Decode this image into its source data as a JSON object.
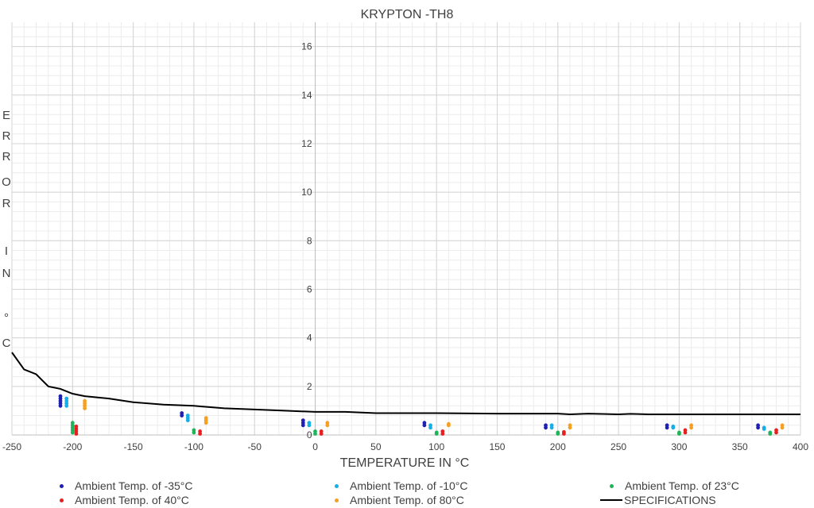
{
  "chart_data": {
    "type": "scatter",
    "title": "KRYPTON -TH8",
    "xlabel": "TEMPERATURE IN °C",
    "ylabel": "ERROR IN °C",
    "ylabel_letters": [
      "E",
      "R",
      "R",
      "O",
      "R",
      "",
      "I",
      "N",
      "",
      "°",
      "C"
    ],
    "xlim": [
      -250,
      400
    ],
    "ylim": [
      0,
      17
    ],
    "x_ticks": [
      -250,
      -200,
      -150,
      -100,
      -50,
      0,
      50,
      100,
      150,
      200,
      250,
      300,
      350,
      400
    ],
    "y_ticks": [
      0,
      2,
      4,
      6,
      8,
      10,
      12,
      14,
      16
    ],
    "grid": true,
    "legend_position": "bottom",
    "series": [
      {
        "name": "Ambient Temp. of -35°C",
        "color": "#1f1fb4",
        "points": [
          [
            -210,
            1.2
          ],
          [
            -210,
            1.3
          ],
          [
            -210,
            1.4
          ],
          [
            -210,
            1.5
          ],
          [
            -210,
            1.6
          ],
          [
            -110,
            0.8
          ],
          [
            -110,
            0.9
          ],
          [
            -10,
            0.4
          ],
          [
            -10,
            0.5
          ],
          [
            -10,
            0.6
          ],
          [
            90,
            0.4
          ],
          [
            90,
            0.5
          ],
          [
            190,
            0.3
          ],
          [
            190,
            0.4
          ],
          [
            290,
            0.3
          ],
          [
            290,
            0.4
          ],
          [
            365,
            0.3
          ],
          [
            365,
            0.4
          ]
        ]
      },
      {
        "name": "Ambient Temp. of -10°C",
        "color": "#17aee8",
        "points": [
          [
            -205,
            1.2
          ],
          [
            -205,
            1.3
          ],
          [
            -205,
            1.4
          ],
          [
            -205,
            1.5
          ],
          [
            -105,
            0.6
          ],
          [
            -105,
            0.7
          ],
          [
            -105,
            0.8
          ],
          [
            -5,
            0.4
          ],
          [
            -5,
            0.5
          ],
          [
            95,
            0.3
          ],
          [
            95,
            0.4
          ],
          [
            195,
            0.3
          ],
          [
            195,
            0.4
          ],
          [
            295,
            0.3
          ],
          [
            295,
            0.35
          ],
          [
            370,
            0.25
          ],
          [
            370,
            0.3
          ]
        ]
      },
      {
        "name": "Ambient Temp. of 23°C",
        "color": "#1fb45a",
        "points": [
          [
            -200,
            0.1
          ],
          [
            -200,
            0.2
          ],
          [
            -200,
            0.3
          ],
          [
            -200,
            0.4
          ],
          [
            -200,
            0.5
          ],
          [
            -100,
            0.1
          ],
          [
            -100,
            0.2
          ],
          [
            0,
            0.05
          ],
          [
            0,
            0.15
          ],
          [
            100,
            0.05
          ],
          [
            100,
            0.1
          ],
          [
            200,
            0.05
          ],
          [
            200,
            0.1
          ],
          [
            300,
            0.05
          ],
          [
            300,
            0.1
          ],
          [
            375,
            0.05
          ],
          [
            375,
            0.1
          ]
        ]
      },
      {
        "name": "Ambient Temp. of 40°C",
        "color": "#e81f1f",
        "points": [
          [
            -197,
            0.05
          ],
          [
            -197,
            0.15
          ],
          [
            -197,
            0.25
          ],
          [
            -197,
            0.35
          ],
          [
            -95,
            0.05
          ],
          [
            -95,
            0.15
          ],
          [
            5,
            0.05
          ],
          [
            5,
            0.15
          ],
          [
            105,
            0.05
          ],
          [
            105,
            0.15
          ],
          [
            205,
            0.05
          ],
          [
            205,
            0.12
          ],
          [
            305,
            0.1
          ],
          [
            305,
            0.2
          ],
          [
            380,
            0.1
          ],
          [
            380,
            0.2
          ]
        ]
      },
      {
        "name": "Ambient Temp. of 80°C",
        "color": "#f5a020",
        "points": [
          [
            -190,
            1.1
          ],
          [
            -190,
            1.2
          ],
          [
            -190,
            1.3
          ],
          [
            -190,
            1.4
          ],
          [
            -90,
            0.5
          ],
          [
            -90,
            0.6
          ],
          [
            -90,
            0.7
          ],
          [
            10,
            0.4
          ],
          [
            10,
            0.5
          ],
          [
            110,
            0.4
          ],
          [
            110,
            0.45
          ],
          [
            210,
            0.3
          ],
          [
            210,
            0.4
          ],
          [
            310,
            0.3
          ],
          [
            310,
            0.4
          ],
          [
            385,
            0.3
          ],
          [
            385,
            0.4
          ]
        ]
      },
      {
        "name": "SPECIFICATIONS",
        "color": "#000000",
        "line": true,
        "points": [
          [
            -250,
            3.4
          ],
          [
            -240,
            2.7
          ],
          [
            -230,
            2.5
          ],
          [
            -220,
            2.0
          ],
          [
            -210,
            1.9
          ],
          [
            -200,
            1.7
          ],
          [
            -190,
            1.6
          ],
          [
            -170,
            1.5
          ],
          [
            -150,
            1.35
          ],
          [
            -125,
            1.25
          ],
          [
            -100,
            1.2
          ],
          [
            -75,
            1.1
          ],
          [
            -50,
            1.05
          ],
          [
            -25,
            1.0
          ],
          [
            0,
            0.95
          ],
          [
            25,
            0.95
          ],
          [
            50,
            0.9
          ],
          [
            100,
            0.9
          ],
          [
            150,
            0.88
          ],
          [
            200,
            0.88
          ],
          [
            210,
            0.85
          ],
          [
            225,
            0.88
          ],
          [
            250,
            0.85
          ],
          [
            260,
            0.87
          ],
          [
            275,
            0.85
          ],
          [
            400,
            0.85
          ]
        ]
      }
    ]
  }
}
